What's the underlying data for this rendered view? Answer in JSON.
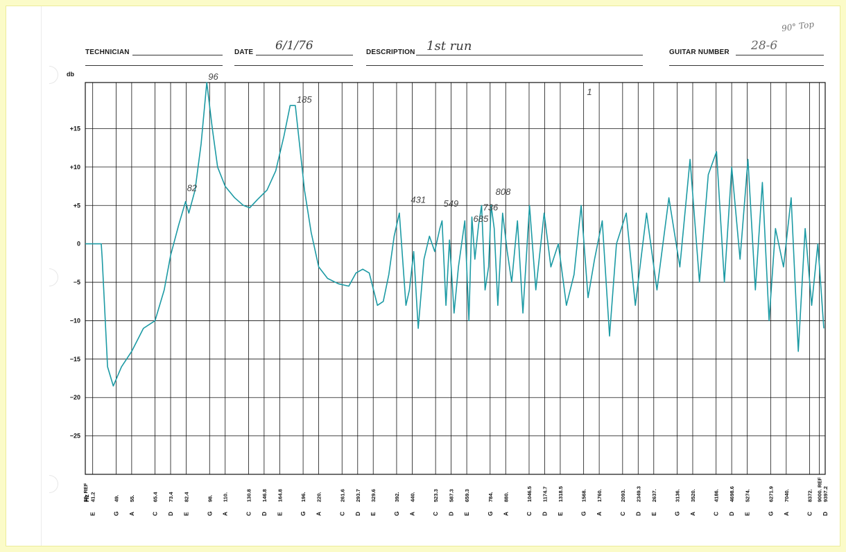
{
  "header": {
    "technician_label": "TECHNICIAN",
    "technician_value": "",
    "date_label": "DATE",
    "date_value": "6/1/76",
    "description_label": "DESCRIPTION",
    "description_value": "1st run",
    "guitar_number_label": "GUITAR NUMBER",
    "guitar_number_value": "28-6",
    "corner_note": "90° Top"
  },
  "colors": {
    "trace": "#1c9aa4",
    "grid": "#111111",
    "paper": "#ffffff",
    "frame": "#fbfbc8"
  },
  "chart_data": {
    "type": "line",
    "ylabel": "db",
    "xlabel": "Hz",
    "ylim": [
      -30,
      21
    ],
    "ytick_labels": [
      "+15",
      "+10",
      "+5",
      "0",
      "−5",
      "−10",
      "−15",
      "−20",
      "−25"
    ],
    "ytick_values": [
      15,
      10,
      5,
      0,
      -5,
      -10,
      -15,
      -20,
      -25
    ],
    "x_scale": "log",
    "x_ticks": [
      {
        "hz": 39,
        "label": "39. REF",
        "note": ""
      },
      {
        "hz": 41.2,
        "label": "41.2",
        "note": "E"
      },
      {
        "hz": 49,
        "label": "49.",
        "note": "G"
      },
      {
        "hz": 55,
        "label": "55.",
        "note": "A"
      },
      {
        "hz": 65.4,
        "label": "65.4",
        "note": "C"
      },
      {
        "hz": 73.4,
        "label": "73.4",
        "note": "D"
      },
      {
        "hz": 82.4,
        "label": "82.4",
        "note": "E"
      },
      {
        "hz": 98,
        "label": "98.",
        "note": "G"
      },
      {
        "hz": 110,
        "label": "110.",
        "note": "A"
      },
      {
        "hz": 130.8,
        "label": "130.8",
        "note": "C"
      },
      {
        "hz": 146.8,
        "label": "146.8",
        "note": "D"
      },
      {
        "hz": 164.8,
        "label": "164.8",
        "note": "E"
      },
      {
        "hz": 196,
        "label": "196.",
        "note": "G"
      },
      {
        "hz": 220,
        "label": "220.",
        "note": "A"
      },
      {
        "hz": 261.6,
        "label": "261.6",
        "note": "C"
      },
      {
        "hz": 293.7,
        "label": "293.7",
        "note": "D"
      },
      {
        "hz": 329.6,
        "label": "329.6",
        "note": "E"
      },
      {
        "hz": 392,
        "label": "392.",
        "note": "G"
      },
      {
        "hz": 440,
        "label": "440.",
        "note": "A"
      },
      {
        "hz": 523.3,
        "label": "523.3",
        "note": "C"
      },
      {
        "hz": 587.3,
        "label": "587.3",
        "note": "D"
      },
      {
        "hz": 659.3,
        "label": "659.3",
        "note": "E"
      },
      {
        "hz": 784,
        "label": "784.",
        "note": "G"
      },
      {
        "hz": 880,
        "label": "880.",
        "note": "A"
      },
      {
        "hz": 1046.5,
        "label": "1046.5",
        "note": "C"
      },
      {
        "hz": 1174.7,
        "label": "1174.7",
        "note": "D"
      },
      {
        "hz": 1318.5,
        "label": "1318.5",
        "note": "E"
      },
      {
        "hz": 1568,
        "label": "1568.",
        "note": "G"
      },
      {
        "hz": 1760,
        "label": "1760.",
        "note": "A"
      },
      {
        "hz": 2093,
        "label": "2093.",
        "note": "C"
      },
      {
        "hz": 2349.3,
        "label": "2349.3",
        "note": "D"
      },
      {
        "hz": 2637,
        "label": "2637.",
        "note": "E"
      },
      {
        "hz": 3136,
        "label": "3136.",
        "note": "G"
      },
      {
        "hz": 3520,
        "label": "3520.",
        "note": "A"
      },
      {
        "hz": 4186,
        "label": "4186.",
        "note": "C"
      },
      {
        "hz": 4698.6,
        "label": "4698.6",
        "note": "D"
      },
      {
        "hz": 5274,
        "label": "5274.",
        "note": "E"
      },
      {
        "hz": 6271.9,
        "label": "6271.9",
        "note": "G"
      },
      {
        "hz": 7040,
        "label": "7040.",
        "note": "A"
      },
      {
        "hz": 8372,
        "label": "8372.",
        "note": "C"
      },
      {
        "hz": 9000,
        "label": "9000. REF",
        "note": ""
      },
      {
        "hz": 9397.2,
        "label": "9397.2",
        "note": "D"
      }
    ],
    "series": [
      {
        "x": [
          39,
          43.9,
          44.2,
          46,
          48,
          51,
          55,
          60,
          65.4,
          70,
          73.4,
          78,
          82,
          84,
          88,
          92,
          96,
          100,
          104,
          110,
          118,
          126,
          132,
          140,
          150,
          160,
          170,
          178,
          185,
          192,
          198,
          208,
          220,
          235,
          255,
          275,
          290,
          305,
          320,
          340,
          355,
          370,
          385,
          400,
          420,
          431,
          445,
          460,
          480,
          500,
          520,
          540,
          549,
          565,
          580,
          600,
          620,
          650,
          670,
          685,
          700,
          720,
          736,
          755,
          775,
          790,
          808,
          830,
          860,
          890,
          920,
          960,
          1000,
          1050,
          1100,
          1170,
          1230,
          1300,
          1380,
          1460,
          1540,
          1620,
          1700,
          1800,
          1900,
          2000,
          2150,
          2300,
          2500,
          2700,
          2950,
          3200,
          3450,
          3700,
          3950,
          4200,
          4450,
          4700,
          5000,
          5300,
          5600,
          5900,
          6200,
          6500,
          6900,
          7300,
          7700,
          8100,
          8500,
          8900,
          9300
        ],
        "y": [
          0,
          0,
          -1.8,
          -16,
          -18.5,
          -16,
          -14,
          -11,
          -10,
          -6,
          -1.5,
          2.5,
          5.5,
          4,
          7,
          13,
          21,
          15,
          10,
          7.5,
          6,
          5,
          4.7,
          5.8,
          7,
          9.5,
          14,
          18,
          18,
          12,
          7,
          1.5,
          -3,
          -4.5,
          -5.2,
          -5.5,
          -3.8,
          -3.3,
          -3.8,
          -8,
          -7.5,
          -4,
          1,
          4,
          -8,
          -6,
          -1,
          -11,
          -2,
          1,
          -1,
          2,
          3,
          -8,
          0.5,
          -9,
          -3,
          3,
          -10,
          3.5,
          -2,
          2.5,
          5,
          -6,
          -3,
          5,
          2,
          -8,
          4,
          -1,
          -5,
          3,
          -9,
          5,
          -6,
          4,
          -3,
          0,
          -8,
          -4,
          5,
          -7,
          -2,
          3,
          -12,
          0,
          4,
          -8,
          4,
          -6,
          6,
          -3,
          11,
          -5,
          9,
          12,
          -5,
          10,
          -2,
          11,
          -6,
          8,
          -10,
          2,
          -3,
          6,
          -14,
          2,
          -8,
          0,
          -11
        ]
      }
    ],
    "annotations": [
      {
        "text": "82",
        "hz": 82,
        "db": 6.5
      },
      {
        "text": "96",
        "hz": 96,
        "db": 21
      },
      {
        "text": "185",
        "hz": 185,
        "db": 18
      },
      {
        "text": "431",
        "hz": 431,
        "db": 5
      },
      {
        "text": "549",
        "hz": 549,
        "db": 4.5
      },
      {
        "text": "685",
        "hz": 685,
        "db": 2.5
      },
      {
        "text": "736",
        "hz": 736,
        "db": 4
      },
      {
        "text": "808",
        "hz": 808,
        "db": 6
      },
      {
        "text": "1",
        "hz": 1590,
        "db": 19
      }
    ]
  }
}
